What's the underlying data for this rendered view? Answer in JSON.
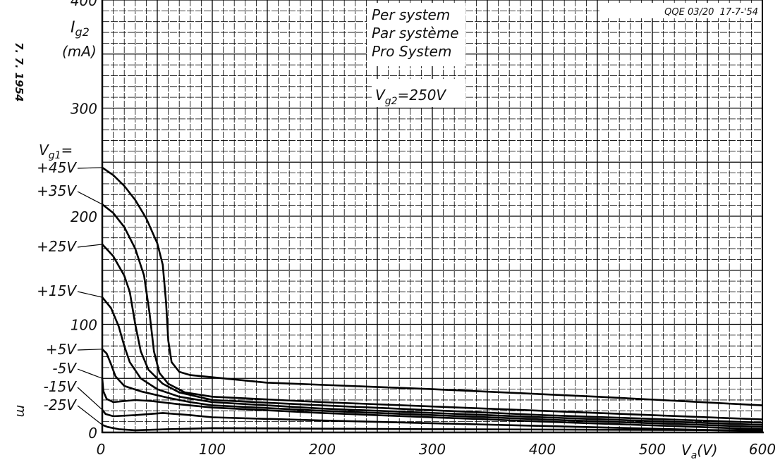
{
  "chart_data": {
    "type": "line",
    "title_box": [
      "Per system",
      "Par système",
      "Pro System"
    ],
    "condition": "Vg2=250V",
    "condition_parts": {
      "sym": "V",
      "sub": "g2",
      "rest": "=250V"
    },
    "doc_ref": "QQE 03/20  17-7-'54",
    "side_date": "7. 7. 1954",
    "side_mark": "m",
    "ylabel": {
      "sym": "I",
      "sub": "g2",
      "unit": "(mA)"
    },
    "xlabel": {
      "sym": "V",
      "sub": "a",
      "unit": "(V)"
    },
    "legend_title": {
      "sym": "V",
      "sub": "g1",
      "rest": "="
    },
    "xlim": [
      0,
      600
    ],
    "ylim": [
      0,
      400
    ],
    "xticks": [
      0,
      100,
      200,
      300,
      400,
      500,
      600
    ],
    "yticks": [
      0,
      100,
      200,
      300,
      400
    ],
    "grid": true,
    "series": [
      {
        "name": "+45V",
        "points": [
          [
            0,
            245
          ],
          [
            10,
            238
          ],
          [
            20,
            228
          ],
          [
            30,
            215
          ],
          [
            40,
            198
          ],
          [
            50,
            175
          ],
          [
            55,
            155
          ],
          [
            58,
            120
          ],
          [
            60,
            85
          ],
          [
            63,
            65
          ],
          [
            70,
            56
          ],
          [
            80,
            53
          ],
          [
            150,
            46
          ],
          [
            300,
            40
          ],
          [
            450,
            33
          ],
          [
            600,
            25
          ]
        ]
      },
      {
        "name": "+35V",
        "points": [
          [
            0,
            211
          ],
          [
            10,
            203
          ],
          [
            20,
            190
          ],
          [
            30,
            170
          ],
          [
            38,
            145
          ],
          [
            43,
            110
          ],
          [
            47,
            75
          ],
          [
            52,
            55
          ],
          [
            60,
            45
          ],
          [
            75,
            37
          ],
          [
            100,
            33
          ],
          [
            200,
            28
          ],
          [
            400,
            20
          ],
          [
            600,
            12
          ]
        ]
      },
      {
        "name": "+25V",
        "points": [
          [
            0,
            174
          ],
          [
            10,
            163
          ],
          [
            20,
            145
          ],
          [
            25,
            130
          ],
          [
            30,
            100
          ],
          [
            35,
            75
          ],
          [
            42,
            58
          ],
          [
            55,
            45
          ],
          [
            70,
            37
          ],
          [
            100,
            30
          ],
          [
            200,
            25
          ],
          [
            400,
            16
          ],
          [
            600,
            9
          ]
        ]
      },
      {
        "name": "+15V",
        "points": [
          [
            0,
            125
          ],
          [
            8,
            115
          ],
          [
            15,
            98
          ],
          [
            20,
            80
          ],
          [
            25,
            65
          ],
          [
            35,
            50
          ],
          [
            50,
            40
          ],
          [
            70,
            33
          ],
          [
            100,
            28
          ],
          [
            200,
            22
          ],
          [
            400,
            14
          ],
          [
            600,
            7
          ]
        ]
      },
      {
        "name": "+5V",
        "points": [
          [
            0,
            77
          ],
          [
            4,
            73
          ],
          [
            8,
            63
          ],
          [
            12,
            52
          ],
          [
            20,
            43
          ],
          [
            35,
            38
          ],
          [
            60,
            32
          ],
          [
            80,
            28
          ],
          [
            100,
            25
          ],
          [
            200,
            20
          ],
          [
            400,
            12
          ],
          [
            600,
            5
          ]
        ]
      },
      {
        "name": "-5V",
        "points": [
          [
            0,
            50
          ],
          [
            1,
            38
          ],
          [
            4,
            31
          ],
          [
            10,
            28
          ],
          [
            20,
            29
          ],
          [
            30,
            30
          ],
          [
            45,
            29
          ],
          [
            70,
            26
          ],
          [
            100,
            23
          ],
          [
            200,
            18
          ],
          [
            400,
            10
          ],
          [
            600,
            3
          ]
        ]
      },
      {
        "name": "-15V",
        "points": [
          [
            0,
            21
          ],
          [
            3,
            17
          ],
          [
            10,
            15
          ],
          [
            30,
            16
          ],
          [
            55,
            18
          ],
          [
            80,
            16
          ],
          [
            100,
            14
          ],
          [
            200,
            11
          ],
          [
            400,
            6
          ],
          [
            600,
            1
          ]
        ]
      },
      {
        "name": "-25V",
        "points": [
          [
            0,
            7
          ],
          [
            5,
            5
          ],
          [
            15,
            3
          ],
          [
            30,
            2
          ],
          [
            60,
            3
          ],
          [
            100,
            4
          ],
          [
            300,
            3
          ],
          [
            600,
            2
          ]
        ]
      }
    ]
  }
}
